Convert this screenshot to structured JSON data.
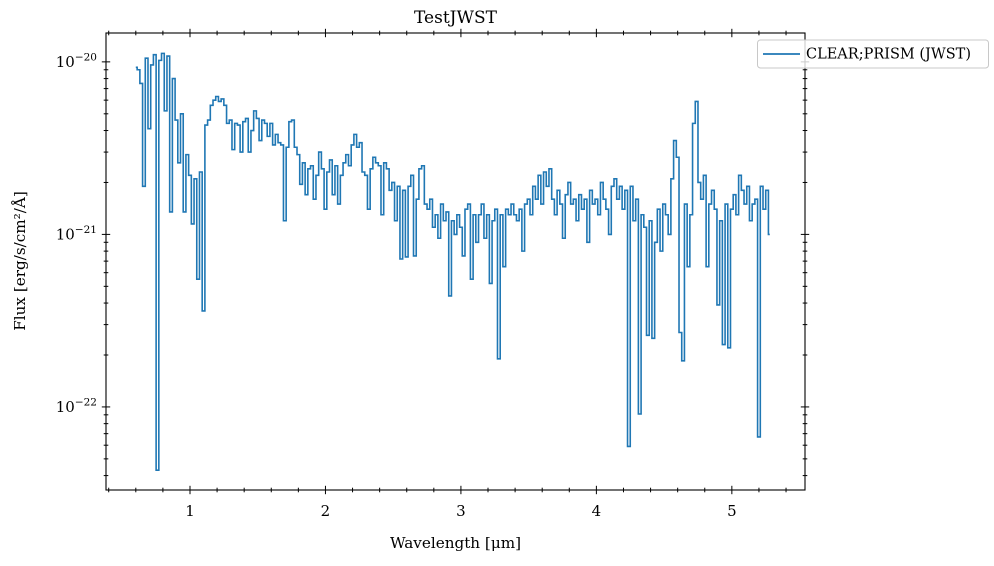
{
  "figure": {
    "title": "TestJWST",
    "background_color": "#ffffff",
    "accent_color": "#1f77b4"
  },
  "axes": {
    "x": {
      "label": "Wavelength [μm]"
    },
    "y": {
      "label": "Flux [erg/s/cm²/Å]"
    }
  },
  "legend": {
    "label": "CLEAR;PRISM (JWST)",
    "line_color": "#1f77b4",
    "position": "upper right"
  },
  "chart_data": {
    "type": "line",
    "title": "TestJWST",
    "xlabel": "Wavelength [μm]",
    "ylabel": "Flux [erg/s/cm²/Å]",
    "xscale": "linear",
    "yscale": "log",
    "xlim": [
      0.38,
      5.54
    ],
    "ylim": [
      3.3e-23,
      1.47e-20
    ],
    "grid": false,
    "legend_position": "upper right",
    "xticks": [
      1,
      2,
      3,
      4,
      5
    ],
    "x_minor_tick_step": 0.2,
    "ytick_exponents": [
      -20,
      -21,
      -22
    ],
    "y_minor_decades": [
      -23,
      -22,
      -21,
      -20
    ],
    "series": [
      {
        "name": "CLEAR;PRISM (JWST)",
        "color": "#1f77b4",
        "line_style": "steps-mid",
        "x_start_um": 0.6,
        "x_step_um": 0.02,
        "flux": [
          9.3e-21,
          9e-21,
          7.5e-21,
          1.9e-21,
          1.05e-20,
          4.1e-21,
          9.6e-21,
          1.1e-20,
          4.3e-23,
          1.02e-20,
          1.12e-20,
          5.2e-21,
          1.08e-20,
          1.35e-21,
          8e-21,
          4.6e-21,
          2.6e-21,
          5e-21,
          1.35e-21,
          2.9e-21,
          2.2e-21,
          1.15e-21,
          2.1e-21,
          5.5e-22,
          2.3e-21,
          3.6e-22,
          4.3e-21,
          4.6e-21,
          5.6e-21,
          6e-21,
          6.3e-21,
          5.9e-21,
          6.1e-21,
          5.6e-21,
          4.4e-21,
          4.6e-21,
          3.1e-21,
          4.4e-21,
          4.3e-21,
          3e-21,
          4.5e-21,
          4.7e-21,
          3e-21,
          4e-21,
          5.2e-21,
          4.7e-21,
          3.5e-21,
          4.6e-21,
          4.4e-21,
          3.7e-21,
          4.4e-21,
          3.3e-21,
          3.8e-21,
          3.4e-21,
          3.3e-21,
          1.2e-21,
          3.2e-21,
          4.5e-21,
          4.6e-21,
          3.2e-21,
          2.9e-21,
          1.95e-21,
          2.6e-21,
          1.7e-21,
          2.4e-21,
          2.5e-21,
          1.6e-21,
          2.2e-21,
          3e-21,
          2.4e-21,
          1.4e-21,
          2.3e-21,
          2.7e-21,
          1.7e-21,
          2.5e-21,
          1.5e-21,
          2.2e-21,
          2.6e-21,
          2.9e-21,
          2.5e-21,
          3.3e-21,
          3.8e-21,
          3.2e-21,
          3.4e-21,
          2.3e-21,
          2.2e-21,
          1.4e-21,
          2.4e-21,
          2.8e-21,
          2.6e-21,
          2.5e-21,
          1.3e-21,
          2.6e-21,
          2.4e-21,
          1.8e-21,
          2e-21,
          1.2e-21,
          1.9e-21,
          7.2e-22,
          1.8e-21,
          7.4e-22,
          1.9e-21,
          2.2e-21,
          7.5e-22,
          1.6e-21,
          2.4e-21,
          2.5e-21,
          1.5e-21,
          1.4e-21,
          1.6e-21,
          1.1e-21,
          1.3e-21,
          9.5e-22,
          1.5e-21,
          1.2e-21,
          1.35e-21,
          4.4e-22,
          1.2e-21,
          1e-21,
          1.3e-21,
          1.1e-21,
          7.5e-22,
          1.4e-21,
          1.5e-21,
          5.5e-22,
          1.3e-21,
          9e-22,
          1.3e-21,
          1.5e-21,
          9.5e-22,
          1.3e-21,
          5.2e-22,
          1.2e-21,
          1.4e-21,
          1.9e-22,
          1.3e-21,
          6.5e-22,
          1.4e-21,
          1.3e-21,
          1.5e-21,
          1.3e-21,
          1.2e-21,
          1.4e-21,
          8e-22,
          1.5e-21,
          1.6e-21,
          1.3e-21,
          1.9e-21,
          1.6e-21,
          2.2e-21,
          1.5e-21,
          2.3e-21,
          1.9e-21,
          2.4e-21,
          1.6e-21,
          1.3e-21,
          1.8e-21,
          1.5e-21,
          9.5e-22,
          1.7e-21,
          2e-21,
          1.5e-21,
          1.6e-21,
          1.2e-21,
          1.7e-21,
          1.4e-21,
          1.6e-21,
          9e-22,
          1.8e-21,
          1.5e-21,
          1.6e-21,
          1.3e-21,
          2e-21,
          1.6e-21,
          1.4e-21,
          1e-21,
          1.9e-21,
          2.1e-21,
          1.6e-21,
          1.9e-21,
          1.4e-21,
          1.8e-21,
          5.9e-23,
          1.9e-21,
          1.2e-21,
          1.6e-21,
          9.1e-23,
          1.3e-21,
          1.1e-21,
          2.6e-22,
          1.2e-21,
          2.5e-22,
          9e-22,
          1.4e-21,
          8e-22,
          1.5e-21,
          1.3e-21,
          1e-21,
          2.1e-21,
          3.5e-21,
          2.8e-21,
          2.7e-22,
          1.85e-22,
          1.5e-21,
          6.5e-22,
          1.3e-21,
          4.4e-21,
          5.9e-21,
          2e-21,
          1.6e-21,
          2.2e-21,
          6.5e-22,
          1.5e-21,
          1.8e-21,
          1.4e-21,
          3.9e-22,
          1.2e-21,
          2.3e-22,
          1.5e-21,
          2.2e-22,
          1.4e-21,
          1.7e-21,
          1.3e-21,
          2.2e-21,
          1.8e-21,
          1.5e-21,
          1.9e-21,
          1.2e-21,
          1.5e-21,
          1.6e-21,
          6.7e-23,
          1.9e-21,
          1.4e-21,
          1.8e-21,
          1e-21
        ]
      }
    ]
  }
}
